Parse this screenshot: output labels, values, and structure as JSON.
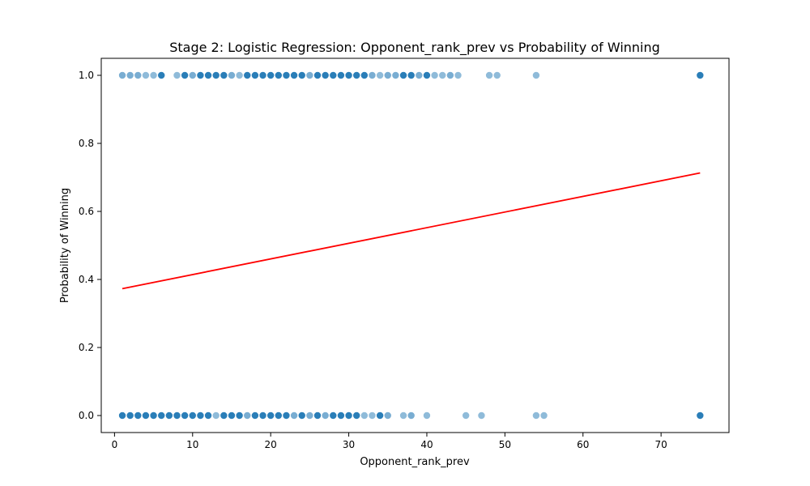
{
  "chart_data": {
    "type": "scatter",
    "title": "Stage 2: Logistic Regression: Opponent_rank_prev vs Probability of Winning",
    "xlabel": "Opponent_rank_prev",
    "ylabel": "Probability of Winning",
    "xlim": [
      -1.7,
      78.7
    ],
    "ylim": [
      -0.05,
      1.05
    ],
    "xticks": [
      0,
      10,
      20,
      30,
      40,
      50,
      60,
      70
    ],
    "xtick_labels": [
      "0",
      "10",
      "20",
      "30",
      "40",
      "50",
      "60",
      "70"
    ],
    "yticks": [
      0.0,
      0.2,
      0.4,
      0.6,
      0.8,
      1.0
    ],
    "ytick_labels": [
      "0.0",
      "0.2",
      "0.4",
      "0.6",
      "0.8",
      "1.0"
    ],
    "grid": false,
    "series": [
      {
        "points": [
          {
            "x": 1,
            "y": 1,
            "alpha": 0.6
          },
          {
            "x": 2,
            "y": 1,
            "alpha": 0.6
          },
          {
            "x": 3,
            "y": 1,
            "alpha": 0.6
          },
          {
            "x": 4,
            "y": 1,
            "alpha": 0.5
          },
          {
            "x": 5,
            "y": 1,
            "alpha": 0.5
          },
          {
            "x": 6,
            "y": 1,
            "alpha": 0.95
          },
          {
            "x": 8,
            "y": 1,
            "alpha": 0.5
          },
          {
            "x": 9,
            "y": 1,
            "alpha": 0.95
          },
          {
            "x": 10,
            "y": 1,
            "alpha": 0.6
          },
          {
            "x": 11,
            "y": 1,
            "alpha": 0.95
          },
          {
            "x": 12,
            "y": 1,
            "alpha": 0.95
          },
          {
            "x": 13,
            "y": 1,
            "alpha": 0.95
          },
          {
            "x": 14,
            "y": 1,
            "alpha": 0.95
          },
          {
            "x": 15,
            "y": 1,
            "alpha": 0.6
          },
          {
            "x": 16,
            "y": 1,
            "alpha": 0.5
          },
          {
            "x": 17,
            "y": 1,
            "alpha": 0.95
          },
          {
            "x": 18,
            "y": 1,
            "alpha": 0.95
          },
          {
            "x": 19,
            "y": 1,
            "alpha": 0.95
          },
          {
            "x": 20,
            "y": 1,
            "alpha": 0.95
          },
          {
            "x": 21,
            "y": 1,
            "alpha": 0.95
          },
          {
            "x": 22,
            "y": 1,
            "alpha": 0.95
          },
          {
            "x": 23,
            "y": 1,
            "alpha": 0.95
          },
          {
            "x": 24,
            "y": 1,
            "alpha": 0.95
          },
          {
            "x": 25,
            "y": 1,
            "alpha": 0.6
          },
          {
            "x": 26,
            "y": 1,
            "alpha": 0.95
          },
          {
            "x": 27,
            "y": 1,
            "alpha": 0.95
          },
          {
            "x": 28,
            "y": 1,
            "alpha": 0.95
          },
          {
            "x": 29,
            "y": 1,
            "alpha": 0.95
          },
          {
            "x": 30,
            "y": 1,
            "alpha": 0.95
          },
          {
            "x": 31,
            "y": 1,
            "alpha": 0.95
          },
          {
            "x": 32,
            "y": 1,
            "alpha": 0.95
          },
          {
            "x": 33,
            "y": 1,
            "alpha": 0.6
          },
          {
            "x": 34,
            "y": 1,
            "alpha": 0.5
          },
          {
            "x": 35,
            "y": 1,
            "alpha": 0.6
          },
          {
            "x": 36,
            "y": 1,
            "alpha": 0.6
          },
          {
            "x": 37,
            "y": 1,
            "alpha": 0.95
          },
          {
            "x": 38,
            "y": 1,
            "alpha": 0.95
          },
          {
            "x": 39,
            "y": 1,
            "alpha": 0.6
          },
          {
            "x": 40,
            "y": 1,
            "alpha": 0.95
          },
          {
            "x": 41,
            "y": 1,
            "alpha": 0.5
          },
          {
            "x": 42,
            "y": 1,
            "alpha": 0.5
          },
          {
            "x": 43,
            "y": 1,
            "alpha": 0.6
          },
          {
            "x": 44,
            "y": 1,
            "alpha": 0.5
          },
          {
            "x": 48,
            "y": 1,
            "alpha": 0.5
          },
          {
            "x": 49,
            "y": 1,
            "alpha": 0.5
          },
          {
            "x": 54,
            "y": 1,
            "alpha": 0.5
          },
          {
            "x": 75,
            "y": 1,
            "alpha": 0.95
          },
          {
            "x": 1,
            "y": 0,
            "alpha": 0.95
          },
          {
            "x": 2,
            "y": 0,
            "alpha": 0.95
          },
          {
            "x": 3,
            "y": 0,
            "alpha": 0.95
          },
          {
            "x": 4,
            "y": 0,
            "alpha": 0.95
          },
          {
            "x": 5,
            "y": 0,
            "alpha": 0.95
          },
          {
            "x": 6,
            "y": 0,
            "alpha": 0.95
          },
          {
            "x": 7,
            "y": 0,
            "alpha": 0.95
          },
          {
            "x": 8,
            "y": 0,
            "alpha": 0.95
          },
          {
            "x": 9,
            "y": 0,
            "alpha": 0.95
          },
          {
            "x": 10,
            "y": 0,
            "alpha": 0.95
          },
          {
            "x": 11,
            "y": 0,
            "alpha": 0.95
          },
          {
            "x": 12,
            "y": 0,
            "alpha": 0.95
          },
          {
            "x": 13,
            "y": 0,
            "alpha": 0.5
          },
          {
            "x": 14,
            "y": 0,
            "alpha": 0.95
          },
          {
            "x": 15,
            "y": 0,
            "alpha": 0.95
          },
          {
            "x": 16,
            "y": 0,
            "alpha": 0.95
          },
          {
            "x": 17,
            "y": 0,
            "alpha": 0.6
          },
          {
            "x": 18,
            "y": 0,
            "alpha": 0.95
          },
          {
            "x": 19,
            "y": 0,
            "alpha": 0.95
          },
          {
            "x": 20,
            "y": 0,
            "alpha": 0.95
          },
          {
            "x": 21,
            "y": 0,
            "alpha": 0.95
          },
          {
            "x": 22,
            "y": 0,
            "alpha": 0.95
          },
          {
            "x": 23,
            "y": 0,
            "alpha": 0.6
          },
          {
            "x": 24,
            "y": 0,
            "alpha": 0.95
          },
          {
            "x": 25,
            "y": 0,
            "alpha": 0.6
          },
          {
            "x": 26,
            "y": 0,
            "alpha": 0.95
          },
          {
            "x": 27,
            "y": 0,
            "alpha": 0.6
          },
          {
            "x": 28,
            "y": 0,
            "alpha": 0.95
          },
          {
            "x": 29,
            "y": 0,
            "alpha": 0.95
          },
          {
            "x": 30,
            "y": 0,
            "alpha": 0.95
          },
          {
            "x": 31,
            "y": 0,
            "alpha": 0.95
          },
          {
            "x": 32,
            "y": 0,
            "alpha": 0.5
          },
          {
            "x": 33,
            "y": 0,
            "alpha": 0.5
          },
          {
            "x": 34,
            "y": 0,
            "alpha": 0.95
          },
          {
            "x": 35,
            "y": 0,
            "alpha": 0.6
          },
          {
            "x": 37,
            "y": 0,
            "alpha": 0.5
          },
          {
            "x": 38,
            "y": 0,
            "alpha": 0.6
          },
          {
            "x": 40,
            "y": 0,
            "alpha": 0.5
          },
          {
            "x": 45,
            "y": 0,
            "alpha": 0.5
          },
          {
            "x": 47,
            "y": 0,
            "alpha": 0.5
          },
          {
            "x": 54,
            "y": 0,
            "alpha": 0.5
          },
          {
            "x": 55,
            "y": 0,
            "alpha": 0.5
          },
          {
            "x": 75,
            "y": 0,
            "alpha": 0.95
          }
        ],
        "color": "#1f77b4"
      },
      {
        "type": "line",
        "x": [
          1,
          75
        ],
        "y": [
          0.373,
          0.713
        ],
        "color": "#ff0000"
      }
    ]
  }
}
